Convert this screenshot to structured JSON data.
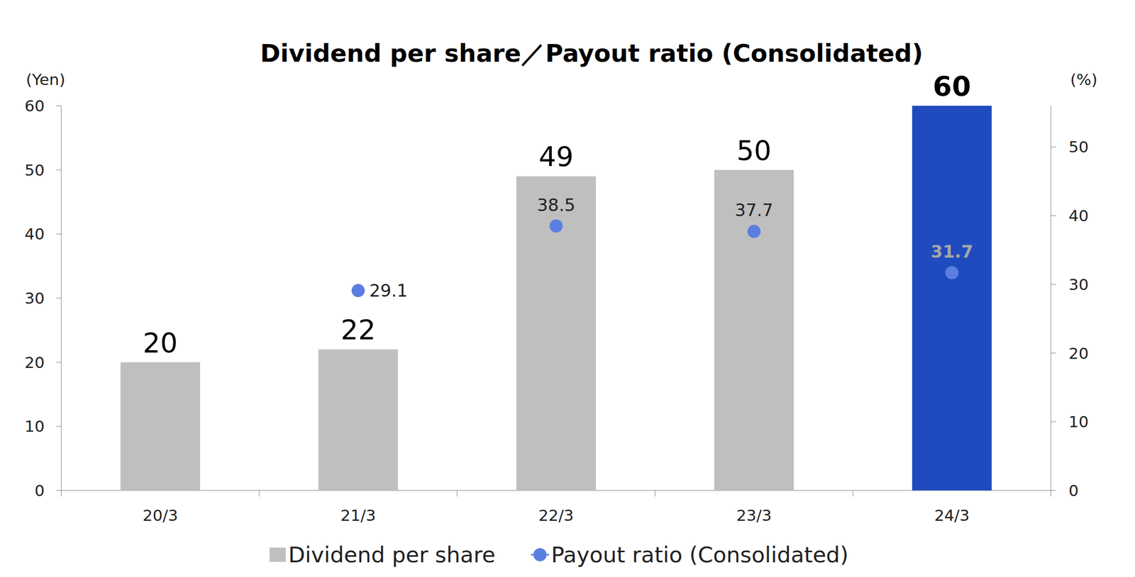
{
  "chart_data": {
    "type": "bar",
    "title": "Dividend per share／Payout ratio (Consolidated)",
    "y_label": "(Yen)",
    "y2_label": "(%)",
    "categories": [
      "20/3",
      "21/3",
      "22/3",
      "23/3",
      "24/3"
    ],
    "series": [
      {
        "name": "Dividend per share",
        "type": "bar",
        "colors": [
          "#bfbfbf",
          "#bfbfbf",
          "#bfbfbf",
          "#bfbfbf",
          "#1f4bbe"
        ],
        "values": [
          20,
          22,
          49,
          50,
          60
        ]
      },
      {
        "name": "Payout ratio (Consolidated)",
        "type": "scatter",
        "axis": "y2",
        "color": "#5a7fe0",
        "marker": "circle",
        "values": [
          null,
          29.1,
          38.5,
          37.7,
          31.7
        ]
      }
    ],
    "ylim": [
      0,
      60
    ],
    "yticks": [
      0,
      10,
      20,
      30,
      40,
      50,
      60
    ],
    "y2lim": [
      0,
      56
    ],
    "y2ticks": [
      0,
      10,
      20,
      30,
      40,
      50
    ],
    "data_labels": true,
    "legend": "bottom",
    "grid": false
  }
}
